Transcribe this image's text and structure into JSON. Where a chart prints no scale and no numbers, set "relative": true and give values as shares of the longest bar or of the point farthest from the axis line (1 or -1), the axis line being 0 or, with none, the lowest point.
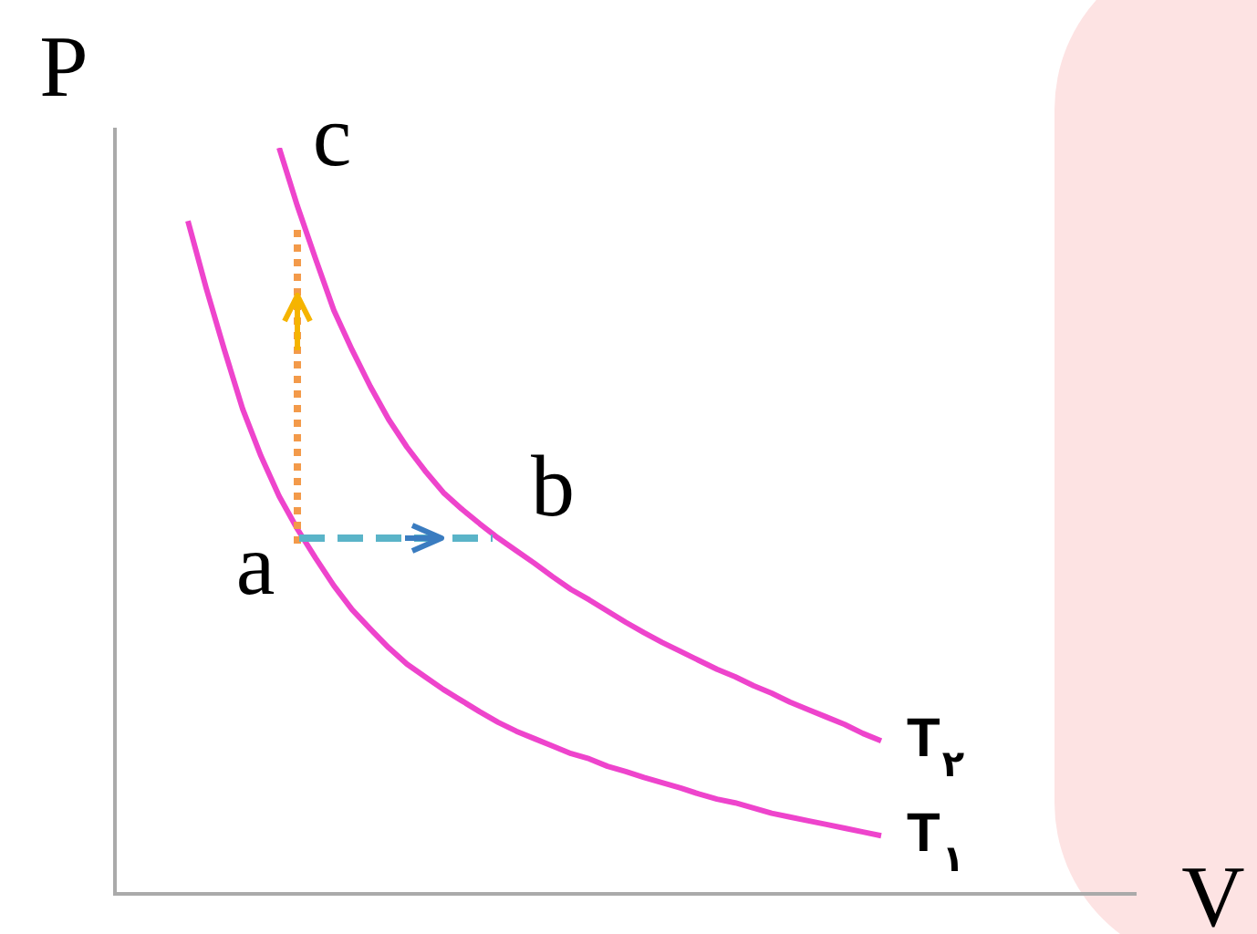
{
  "chart_data": {
    "type": "line",
    "relative": true,
    "xlabel": "V",
    "ylabel": "P",
    "legend": false,
    "marker": "none",
    "grid": false,
    "line_style": "solid",
    "categories": [
      null,
      null,
      null,
      null,
      null,
      null,
      null,
      null,
      null,
      null,
      null,
      null,
      null,
      null,
      null,
      null,
      null,
      null,
      null,
      null,
      null,
      null,
      null,
      null,
      null,
      null,
      null,
      null,
      null,
      null,
      null,
      null,
      null,
      null,
      null,
      null,
      null,
      null,
      null,
      null,
      null,
      null,
      null,
      null,
      null,
      null,
      null,
      null,
      null,
      null,
      null,
      null,
      null,
      null,
      null,
      null,
      null
    ],
    "series": [
      {
        "name": "T$_{۲}$",
        "color": "#ee44cc",
        "values": [
          null,
          null,
          null,
          null,
          null,
          null,
          null,
          null,
          null,
          1.0,
          0.922,
          0.851,
          0.782,
          0.729,
          0.68,
          0.636,
          0.599,
          0.567,
          0.538,
          0.516,
          0.496,
          0.477,
          0.46,
          0.443,
          0.425,
          0.408,
          0.394,
          0.379,
          0.364,
          0.35,
          0.337,
          0.325,
          0.313,
          0.301,
          0.291,
          0.279,
          0.269,
          0.257,
          0.247,
          0.237,
          0.227,
          0.215,
          0.205,
          null,
          null,
          null,
          null,
          null,
          null,
          null,
          null,
          null,
          null,
          null,
          null,
          null,
          null
        ]
      },
      {
        "name": "T$_{۱}$",
        "color": "#ee44cc",
        "values": [
          null,
          null,
          null,
          null,
          0.902,
          0.812,
          0.729,
          0.65,
          0.587,
          0.533,
          0.489,
          0.45,
          0.413,
          0.381,
          0.355,
          0.33,
          0.308,
          0.291,
          0.274,
          0.259,
          0.244,
          0.23,
          0.218,
          0.208,
          0.198,
          0.188,
          0.181,
          0.171,
          0.164,
          0.156,
          0.149,
          0.142,
          0.134,
          0.127,
          0.122,
          0.115,
          0.108,
          0.103,
          0.098,
          0.093,
          0.088,
          0.083,
          0.078,
          null,
          null,
          null,
          null,
          null,
          null,
          null,
          null,
          null,
          null,
          null,
          null,
          null,
          null
        ]
      }
    ],
    "annotations": [
      "a",
      "b",
      "c"
    ]
  }
}
